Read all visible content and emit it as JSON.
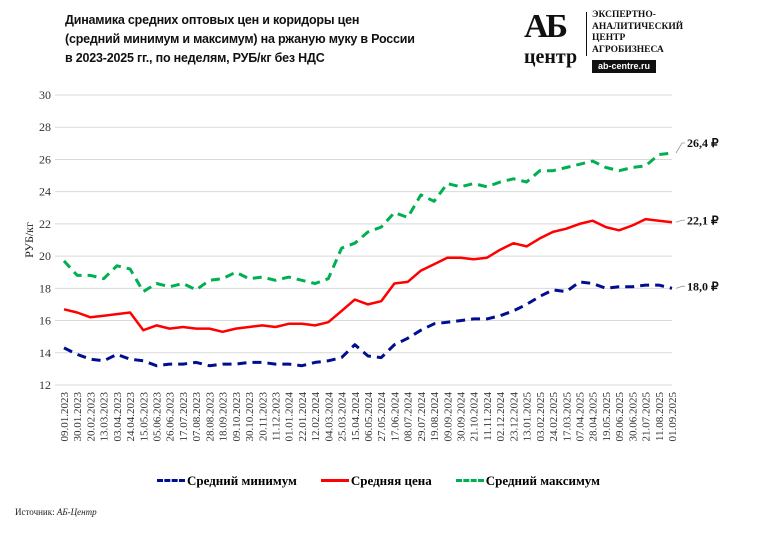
{
  "header": {
    "title_lines": [
      "Динамика средних оптовых цен и коридоры цен",
      "(средний минимум и максимум) на ржаную муку в России",
      "в 2023-2025 гг., по неделям, РУБ/кг без НДС"
    ]
  },
  "logo": {
    "ab": "АБ",
    "centr": "центр",
    "lines": [
      "ЭКСПЕРТНО-",
      "АНАЛИТИЧЕСКИЙ",
      "ЦЕНТР",
      "АГРОБИЗНЕСА"
    ],
    "site": "ab-centre.ru"
  },
  "source": {
    "label": "Источник:",
    "value": "АБ-Центр"
  },
  "chart_data": {
    "type": "line",
    "ylabel": "РУБ/кг",
    "ylim": [
      12,
      30
    ],
    "yticks": [
      12,
      14,
      16,
      18,
      20,
      22,
      24,
      26,
      28,
      30
    ],
    "grid": "horizontal",
    "legend_position": "bottom",
    "categories": [
      "09.01.2023",
      "30.01.2023",
      "20.02.2023",
      "13.03.2023",
      "03.04.2023",
      "24.04.2023",
      "15.05.2023",
      "05.06.2023",
      "26.06.2023",
      "17.07.2023",
      "07.08.2023",
      "28.08.2023",
      "18.09.2023",
      "09.10.2023",
      "30.10.2023",
      "20.11.2023",
      "11.12.2023",
      "01.01.2024",
      "22.01.2024",
      "12.02.2024",
      "04.03.2024",
      "25.03.2024",
      "15.04.2024",
      "06.05.2024",
      "27.05.2024",
      "17.06.2024",
      "08.07.2024",
      "29.07.2024",
      "19.08.2024",
      "09.09.2024",
      "30.09.2024",
      "21.10.2024",
      "11.11.2024",
      "02.12.2024",
      "23.12.2024",
      "13.01.2025",
      "03.02.2025",
      "24.02.2025",
      "17.03.2025",
      "07.04.2025",
      "28.04.2025",
      "19.05.2025",
      "09.06.2025",
      "30.06.2025",
      "21.07.2025",
      "11.08.2025",
      "01.09.2025"
    ],
    "series": [
      {
        "name": "Средний минимум",
        "color": "#000f8f",
        "style": "dashed",
        "end_label": "18,0 ₽",
        "values": [
          14.3,
          13.9,
          13.6,
          13.5,
          13.9,
          13.6,
          13.5,
          13.2,
          13.3,
          13.3,
          13.4,
          13.2,
          13.3,
          13.3,
          13.4,
          13.4,
          13.3,
          13.3,
          13.2,
          13.4,
          13.5,
          13.7,
          14.5,
          13.8,
          13.7,
          14.5,
          14.9,
          15.4,
          15.8,
          15.9,
          16.0,
          16.1,
          16.1,
          16.3,
          16.6,
          17.0,
          17.5,
          17.9,
          17.8,
          18.4,
          18.3,
          18.0,
          18.1,
          18.1,
          18.2,
          18.2,
          18.0
        ]
      },
      {
        "name": "Средняя цена",
        "color": "#ff0000",
        "style": "solid",
        "end_label": "22,1 ₽",
        "values": [
          16.7,
          16.5,
          16.2,
          16.3,
          16.4,
          16.5,
          15.4,
          15.7,
          15.5,
          15.6,
          15.5,
          15.5,
          15.3,
          15.5,
          15.6,
          15.7,
          15.6,
          15.8,
          15.8,
          15.7,
          15.9,
          16.6,
          17.3,
          17.0,
          17.2,
          18.3,
          18.4,
          19.1,
          19.5,
          19.9,
          19.9,
          19.8,
          19.9,
          20.4,
          20.8,
          20.6,
          21.1,
          21.5,
          21.7,
          22.0,
          22.2,
          21.8,
          21.6,
          21.9,
          22.3,
          22.2,
          22.1
        ]
      },
      {
        "name": "Средний максимум",
        "color": "#00b050",
        "style": "dashed",
        "end_label": "26,4 ₽",
        "values": [
          19.7,
          18.8,
          18.8,
          18.6,
          19.4,
          19.2,
          17.8,
          18.3,
          18.1,
          18.3,
          17.9,
          18.5,
          18.6,
          19.0,
          18.6,
          18.7,
          18.5,
          18.7,
          18.5,
          18.3,
          18.6,
          20.5,
          20.8,
          21.5,
          21.8,
          22.7,
          22.4,
          23.8,
          23.4,
          24.5,
          24.3,
          24.5,
          24.3,
          24.6,
          24.8,
          24.6,
          25.3,
          25.3,
          25.5,
          25.7,
          25.9,
          25.5,
          25.3,
          25.5,
          25.6,
          26.3,
          26.4
        ]
      }
    ]
  }
}
